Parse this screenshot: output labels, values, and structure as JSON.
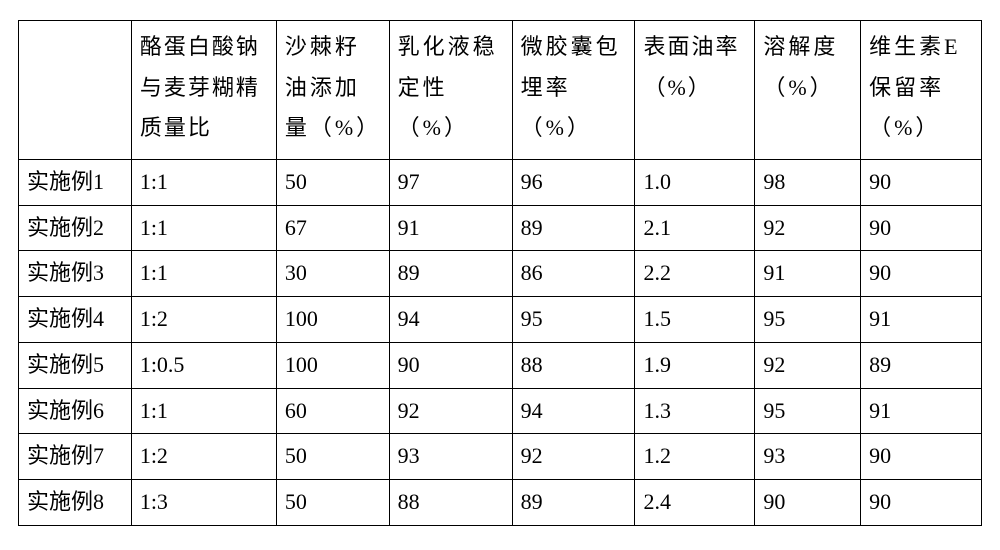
{
  "table": {
    "type": "table",
    "background_color": "#ffffff",
    "border_color": "#000000",
    "text_color": "#000000",
    "font_family": "SimSun",
    "header_fontsize_pt": 16,
    "body_fontsize_pt": 16,
    "column_widths_pct": [
      11.2,
      14.4,
      11.2,
      12.2,
      12.2,
      11.9,
      10.5,
      12.0
    ],
    "columns": [
      {
        "key": "label",
        "header": "",
        "align": "left"
      },
      {
        "key": "ratio",
        "header": "酪蛋白酸钠与麦芽糊精质量比",
        "align": "left"
      },
      {
        "key": "oil_add",
        "header": "沙棘籽油添加量（%）",
        "align": "left"
      },
      {
        "key": "emul",
        "header": "乳化液稳定性（%）",
        "align": "left"
      },
      {
        "key": "encap",
        "header": "微胶囊包埋率（%）",
        "align": "left"
      },
      {
        "key": "surf_oil",
        "header": "表面油率（%）",
        "align": "left"
      },
      {
        "key": "solub",
        "header": "溶解度（%）",
        "align": "left"
      },
      {
        "key": "ve",
        "header": "维生素E保留率（%）",
        "align": "left"
      }
    ],
    "rows": [
      {
        "label": "实施例1",
        "ratio": "1:1",
        "oil_add": "50",
        "emul": "97",
        "encap": "96",
        "surf_oil": "1.0",
        "solub": "98",
        "ve": "90"
      },
      {
        "label": "实施例2",
        "ratio": "1:1",
        "oil_add": "67",
        "emul": "91",
        "encap": "89",
        "surf_oil": "2.1",
        "solub": "92",
        "ve": "90"
      },
      {
        "label": "实施例3",
        "ratio": "1:1",
        "oil_add": "30",
        "emul": "89",
        "encap": "86",
        "surf_oil": "2.2",
        "solub": "91",
        "ve": "90"
      },
      {
        "label": "实施例4",
        "ratio": "1:2",
        "oil_add": "100",
        "emul": "94",
        "encap": "95",
        "surf_oil": "1.5",
        "solub": "95",
        "ve": "91"
      },
      {
        "label": "实施例5",
        "ratio": "1:0.5",
        "oil_add": "100",
        "emul": "90",
        "encap": "88",
        "surf_oil": "1.9",
        "solub": "92",
        "ve": "89"
      },
      {
        "label": "实施例6",
        "ratio": "1:1",
        "oil_add": "60",
        "emul": "92",
        "encap": "94",
        "surf_oil": "1.3",
        "solub": "95",
        "ve": "91"
      },
      {
        "label": "实施例7",
        "ratio": "1:2",
        "oil_add": "50",
        "emul": "93",
        "encap": "92",
        "surf_oil": "1.2",
        "solub": "93",
        "ve": "90"
      },
      {
        "label": "实施例8",
        "ratio": "1:3",
        "oil_add": "50",
        "emul": "88",
        "encap": "89",
        "surf_oil": "2.4",
        "solub": "90",
        "ve": "90"
      }
    ]
  }
}
